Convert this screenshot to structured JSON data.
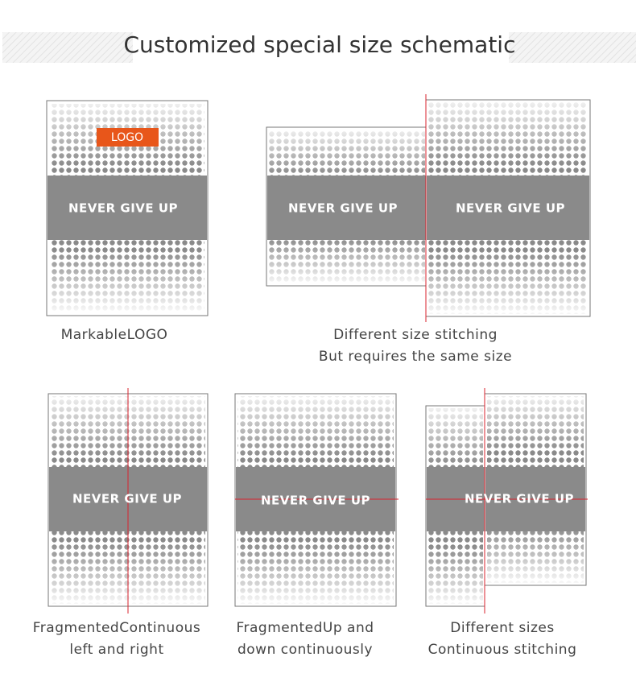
{
  "header": {
    "title": "Customized special size schematic"
  },
  "panels": [
    {
      "logo": "LOGO",
      "slogan": "NEVER GIVE UP",
      "caption": [
        "MarkableLOGO"
      ]
    },
    {
      "slogans": [
        "NEVER GIVE UP",
        "NEVER GIVE UP"
      ],
      "caption": [
        "Different size stitching",
        "But requires the same size"
      ]
    },
    {
      "slogan": "NEVER GIVE UP",
      "caption": [
        "FragmentedContinuous",
        "left and right"
      ]
    },
    {
      "slogan": "NEVER GIVE UP",
      "caption": [
        "FragmentedUp and",
        "down continuously"
      ]
    },
    {
      "slogan": "NEVER GIVE UP",
      "caption": [
        "Different sizes",
        "Continuous stitching"
      ]
    }
  ]
}
